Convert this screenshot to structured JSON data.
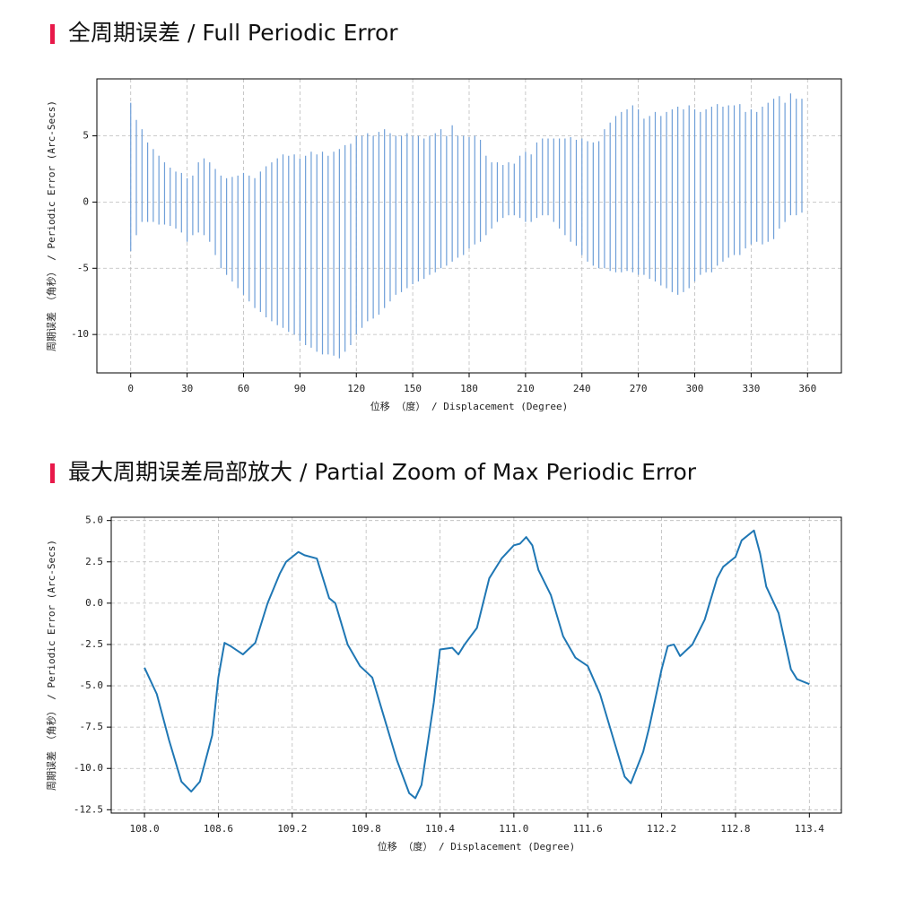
{
  "chart_data": [
    {
      "type": "vlines",
      "title": "全周期误差 / Full Periodic Error",
      "xlabel": "位移 （度） / Displacement (Degree)",
      "ylabel": "周期误差 （角秒） / Periodic Error (Arc-Secs)",
      "color": "#6f9fd8",
      "grid": true,
      "xlim": [
        -18,
        378
      ],
      "ylim": [
        -12.9,
        9.3
      ],
      "xticks": [
        0,
        30,
        60,
        90,
        120,
        150,
        180,
        210,
        240,
        270,
        300,
        330,
        360
      ],
      "yticks": [
        -10,
        -5,
        0,
        5
      ],
      "x": [
        0,
        3,
        6,
        9,
        12,
        15,
        18,
        21,
        24,
        27,
        30,
        33,
        36,
        39,
        42,
        45,
        48,
        51,
        54,
        57,
        60,
        63,
        66,
        69,
        72,
        75,
        78,
        81,
        84,
        87,
        90,
        93,
        96,
        99,
        102,
        105,
        108,
        111,
        114,
        117,
        120,
        123,
        126,
        129,
        132,
        135,
        138,
        141,
        144,
        147,
        150,
        153,
        156,
        159,
        162,
        165,
        168,
        171,
        174,
        177,
        180,
        183,
        186,
        189,
        192,
        195,
        198,
        201,
        204,
        207,
        210,
        213,
        216,
        219,
        222,
        225,
        228,
        231,
        234,
        237,
        240,
        243,
        246,
        249,
        252,
        255,
        258,
        261,
        264,
        267,
        270,
        273,
        276,
        279,
        282,
        285,
        288,
        291,
        294,
        297,
        300,
        303,
        306,
        309,
        312,
        315,
        318,
        321,
        324,
        327,
        330,
        333,
        336,
        339,
        342,
        345,
        348,
        351,
        354,
        357
      ],
      "high": [
        7.5,
        6.2,
        5.5,
        4.5,
        4,
        3.5,
        3,
        2.6,
        2.3,
        2.2,
        1.8,
        2,
        3,
        3.3,
        3,
        2.5,
        2,
        1.8,
        1.9,
        2,
        2.2,
        2,
        1.8,
        2.3,
        2.7,
        3,
        3.3,
        3.6,
        3.5,
        3.6,
        3.3,
        3.5,
        3.8,
        3.6,
        3.8,
        3.5,
        3.8,
        4,
        4.3,
        4.4,
        5,
        5,
        5.2,
        5,
        5.3,
        5.5,
        5.2,
        5,
        5,
        5.2,
        5,
        5,
        4.8,
        5,
        5.2,
        5.5,
        5,
        5.8,
        5,
        5,
        4.9,
        5,
        4.7,
        3.5,
        3,
        3,
        2.8,
        3,
        2.9,
        3.5,
        3.8,
        3.6,
        4.5,
        4.8,
        4.8,
        4.8,
        4.8,
        4.8,
        4.9,
        4.7,
        4.8,
        4.6,
        4.5,
        4.6,
        5.5,
        6,
        6.5,
        6.8,
        7,
        7.3,
        7,
        6.3,
        6.5,
        6.8,
        6.5,
        6.8,
        7,
        7.2,
        7,
        7.3,
        7,
        6.8,
        7,
        7.2,
        7.4,
        7.2,
        7.3,
        7.3,
        7.4,
        6.8,
        7,
        6.8,
        7.2,
        7.5,
        7.8,
        8,
        7.5,
        8.2,
        7.8,
        7.8
      ],
      "low": [
        -3.7,
        -2.5,
        -1.5,
        -1.5,
        -1.5,
        -1.7,
        -1.7,
        -1.8,
        -2,
        -2.3,
        -3,
        -2.5,
        -2.3,
        -2.5,
        -3,
        -4,
        -5,
        -5.5,
        -6,
        -6.5,
        -7,
        -7.5,
        -8,
        -8.3,
        -8.7,
        -9,
        -9.3,
        -9.5,
        -9.8,
        -10,
        -10.5,
        -10.8,
        -11,
        -11.3,
        -11.5,
        -11.5,
        -11.6,
        -11.8,
        -11.3,
        -10.8,
        -10,
        -9.5,
        -9,
        -8.8,
        -8.5,
        -8,
        -7.5,
        -7,
        -6.8,
        -6.5,
        -6.2,
        -6,
        -5.8,
        -5.5,
        -5.3,
        -5,
        -4.8,
        -4.5,
        -4.2,
        -4,
        -3.5,
        -3.2,
        -3,
        -2.5,
        -2,
        -1.5,
        -1.2,
        -1,
        -1,
        -1.2,
        -1.5,
        -1.5,
        -1.2,
        -1,
        -1,
        -1.5,
        -2,
        -2.5,
        -3,
        -3.3,
        -4,
        -4.5,
        -4.8,
        -5,
        -5,
        -5.2,
        -5.3,
        -5.3,
        -5.2,
        -5.3,
        -5.5,
        -5.5,
        -5.8,
        -6,
        -6.3,
        -6.5,
        -6.8,
        -7,
        -6.8,
        -6.5,
        -6,
        -5.5,
        -5.3,
        -5.3,
        -4.8,
        -4.5,
        -4.2,
        -4,
        -4,
        -3.5,
        -3.2,
        -3,
        -3.2,
        -3,
        -2.8,
        -2,
        -1.5,
        -1,
        -1,
        -0.8
      ]
    },
    {
      "type": "line",
      "title": "最大周期误差局部放大 / Partial Zoom of Max Periodic Error",
      "xlabel": "位移 （度） / Displacement (Degree)",
      "ylabel": "周期误差 （角秒） / Periodic Error (Arc-Secs)",
      "color": "#1f77b4",
      "grid": true,
      "xlim": [
        107.73,
        113.66
      ],
      "ylim": [
        -12.7,
        5.2
      ],
      "xticks": [
        {
          "value": 108,
          "label": "108.0"
        },
        108.6,
        109.2,
        109.8,
        110.4,
        {
          "value": 111,
          "label": "111.0"
        },
        111.6,
        112.2,
        112.8,
        113.4
      ],
      "yticks": [
        {
          "value": 5,
          "label": "5.0"
        },
        2.5,
        {
          "value": 0,
          "label": "0.0"
        },
        -2.5,
        {
          "value": -5,
          "label": "-5.0"
        },
        -7.5,
        {
          "value": -10,
          "label": "-10.0"
        },
        -12.5
      ],
      "x": [
        108.0,
        108.1,
        108.2,
        108.3,
        108.38,
        108.45,
        108.55,
        108.6,
        108.65,
        108.7,
        108.8,
        108.9,
        109.0,
        109.1,
        109.15,
        109.25,
        109.3,
        109.4,
        109.5,
        109.55,
        109.65,
        109.75,
        109.85,
        109.95,
        110.05,
        110.15,
        110.2,
        110.25,
        110.35,
        110.4,
        110.5,
        110.55,
        110.6,
        110.7,
        110.8,
        110.9,
        111.0,
        111.05,
        111.1,
        111.15,
        111.2,
        111.3,
        111.4,
        111.5,
        111.6,
        111.7,
        111.8,
        111.9,
        111.95,
        112.05,
        112.1,
        112.2,
        112.25,
        112.3,
        112.35,
        112.45,
        112.55,
        112.65,
        112.7,
        112.8,
        112.85,
        112.95,
        113.0,
        113.05,
        113.15,
        113.25,
        113.3,
        113.4
      ],
      "values": [
        -3.9,
        -5.5,
        -8.3,
        -10.8,
        -11.4,
        -10.8,
        -8,
        -4.5,
        -2.4,
        -2.6,
        -3.1,
        -2.4,
        0,
        1.8,
        2.5,
        3.1,
        2.9,
        2.7,
        0.3,
        0,
        -2.5,
        -3.8,
        -4.5,
        -7,
        -9.5,
        -11.5,
        -11.8,
        -11,
        -6,
        -2.8,
        -2.7,
        -3.1,
        -2.5,
        -1.5,
        1.5,
        2.7,
        3.5,
        3.6,
        4,
        3.5,
        2,
        0.5,
        -2,
        -3.3,
        -3.8,
        -5.5,
        -8,
        -10.5,
        -10.9,
        -9,
        -7.5,
        -4,
        -2.6,
        -2.5,
        -3.2,
        -2.5,
        -1,
        1.5,
        2.2,
        2.8,
        3.8,
        4.4,
        3,
        1,
        -0.6,
        -4,
        -4.6,
        -4.9
      ]
    }
  ]
}
